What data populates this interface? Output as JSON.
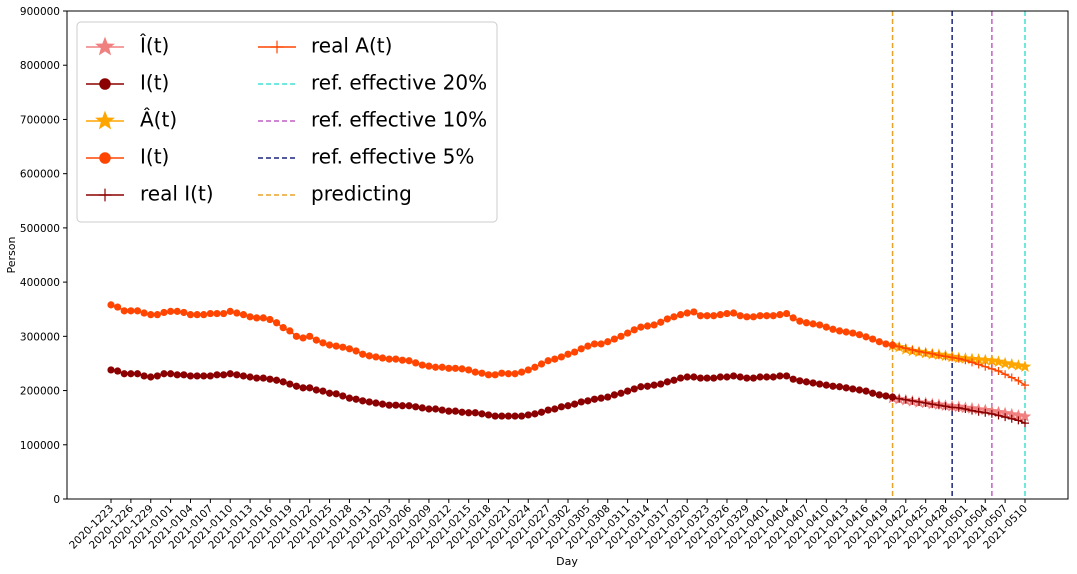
{
  "chart_data": {
    "type": "line",
    "x_label": "Day",
    "y_label": "Person",
    "ylim": [
      0,
      900000
    ],
    "yticks": [
      0,
      100000,
      200000,
      300000,
      400000,
      500000,
      600000,
      700000,
      800000,
      900000
    ],
    "categories": [
      "2020-1223",
      null,
      null,
      "2020-1226",
      null,
      null,
      "2020-1229",
      null,
      null,
      "2021-0101",
      null,
      null,
      "2021-0104",
      null,
      null,
      "2021-0107",
      null,
      null,
      "2021-0110",
      null,
      null,
      "2021-0113",
      null,
      null,
      "2021-0116",
      null,
      null,
      "2021-0119",
      null,
      null,
      "2021-0122",
      null,
      null,
      "2021-0125",
      null,
      null,
      "2021-0128",
      null,
      null,
      "2021-0131",
      null,
      null,
      "2021-0203",
      null,
      null,
      "2021-0206",
      null,
      null,
      "2021-0209",
      null,
      null,
      "2021-0212",
      null,
      null,
      "2021-0215",
      null,
      null,
      "2021-0218",
      null,
      null,
      "2021-0221",
      null,
      null,
      "2021-0224",
      null,
      null,
      "2021-0227",
      null,
      null,
      "2021-0302",
      null,
      null,
      "2021-0305",
      null,
      null,
      "2021-0308",
      null,
      null,
      "2021-0311",
      null,
      null,
      "2021-0314",
      null,
      null,
      "2021-0317",
      null,
      null,
      "2021-0320",
      null,
      null,
      "2021-0323",
      null,
      null,
      "2021-0326",
      null,
      null,
      "2021-0329",
      null,
      null,
      "2021-0401",
      null,
      null,
      "2021-0404",
      null,
      null,
      "2021-0407",
      null,
      null,
      "2021-0410",
      null,
      null,
      "2021-0413",
      null,
      null,
      "2021-0416",
      null,
      null,
      "2021-0419",
      null,
      null,
      "2021-0422",
      null,
      null,
      "2021-0425",
      null,
      null,
      "2021-0428",
      null,
      null,
      "2021-0501",
      null,
      null,
      "2021-0504",
      null,
      null,
      "2021-0507",
      null,
      null,
      "2021-0510"
    ],
    "series": [
      {
        "name": "Î(t)",
        "color": "#f08080",
        "marker": "star",
        "values": [
          null,
          null,
          null,
          null,
          null,
          null,
          null,
          null,
          null,
          null,
          null,
          null,
          null,
          null,
          null,
          null,
          null,
          null,
          null,
          null,
          null,
          null,
          null,
          null,
          null,
          null,
          null,
          null,
          null,
          null,
          null,
          null,
          null,
          null,
          null,
          null,
          null,
          null,
          null,
          null,
          null,
          null,
          null,
          null,
          null,
          null,
          null,
          null,
          null,
          null,
          null,
          null,
          null,
          null,
          null,
          null,
          null,
          null,
          null,
          null,
          null,
          null,
          null,
          null,
          null,
          null,
          null,
          null,
          null,
          null,
          null,
          null,
          null,
          null,
          null,
          null,
          null,
          null,
          null,
          null,
          null,
          null,
          null,
          null,
          null,
          null,
          null,
          null,
          null,
          null,
          null,
          null,
          null,
          null,
          null,
          null,
          null,
          null,
          null,
          null,
          null,
          null,
          null,
          null,
          null,
          null,
          null,
          null,
          null,
          null,
          null,
          null,
          null,
          null,
          null,
          null,
          null,
          null,
          186000,
          184000,
          182000,
          180000,
          178000,
          177000,
          175000,
          174000,
          172000,
          171000,
          170000,
          168000,
          167000,
          165000,
          164000,
          162000,
          160000,
          158000,
          156000,
          154000,
          152000
        ]
      },
      {
        "name": "I(t)",
        "color": "#8b0000",
        "marker": "circle",
        "values": [
          238000,
          236000,
          231000,
          231000,
          231000,
          227000,
          225000,
          227000,
          231000,
          231000,
          229000,
          229000,
          227000,
          227000,
          227000,
          227000,
          229000,
          229000,
          231000,
          229000,
          227000,
          225000,
          223000,
          223000,
          221000,
          219000,
          216000,
          212000,
          208000,
          205000,
          205000,
          201000,
          199000,
          195000,
          194000,
          190000,
          186000,
          184000,
          181000,
          179000,
          177000,
          175000,
          173000,
          173000,
          172000,
          172000,
          170000,
          168000,
          166000,
          166000,
          164000,
          162000,
          162000,
          160000,
          159000,
          159000,
          157000,
          155000,
          153000,
          153000,
          153000,
          153000,
          153000,
          155000,
          157000,
          160000,
          164000,
          166000,
          170000,
          172000,
          175000,
          179000,
          181000,
          184000,
          186000,
          188000,
          192000,
          195000,
          199000,
          203000,
          207000,
          208000,
          210000,
          212000,
          216000,
          219000,
          223000,
          225000,
          225000,
          223000,
          223000,
          223000,
          225000,
          225000,
          227000,
          225000,
          223000,
          223000,
          225000,
          225000,
          225000,
          227000,
          227000,
          221000,
          218000,
          216000,
          214000,
          212000,
          210000,
          208000,
          207000,
          205000,
          203000,
          201000,
          199000,
          195000,
          192000,
          190000,
          188000,
          null,
          null,
          null,
          null,
          null,
          null,
          null,
          null,
          null,
          null,
          null,
          null,
          null,
          null,
          null,
          null,
          null,
          null,
          null,
          null
        ]
      },
      {
        "name": "Â(t)",
        "color": "#ffa500",
        "marker": "star",
        "values": [
          null,
          null,
          null,
          null,
          null,
          null,
          null,
          null,
          null,
          null,
          null,
          null,
          null,
          null,
          null,
          null,
          null,
          null,
          null,
          null,
          null,
          null,
          null,
          null,
          null,
          null,
          null,
          null,
          null,
          null,
          null,
          null,
          null,
          null,
          null,
          null,
          null,
          null,
          null,
          null,
          null,
          null,
          null,
          null,
          null,
          null,
          null,
          null,
          null,
          null,
          null,
          null,
          null,
          null,
          null,
          null,
          null,
          null,
          null,
          null,
          null,
          null,
          null,
          null,
          null,
          null,
          null,
          null,
          null,
          null,
          null,
          null,
          null,
          null,
          null,
          null,
          null,
          null,
          null,
          null,
          null,
          null,
          null,
          null,
          null,
          null,
          null,
          null,
          null,
          null,
          null,
          null,
          null,
          null,
          null,
          null,
          null,
          null,
          null,
          null,
          null,
          null,
          null,
          null,
          null,
          null,
          null,
          null,
          null,
          null,
          null,
          null,
          null,
          null,
          null,
          null,
          null,
          null,
          283000,
          280000,
          276000,
          273000,
          271000,
          269000,
          267000,
          266000,
          264000,
          262000,
          260000,
          259000,
          258000,
          257000,
          256000,
          255000,
          253000,
          250000,
          248000,
          246000,
          244000
        ]
      },
      {
        "name": "I(t)",
        "color": "#ff4500",
        "marker": "circle",
        "values": [
          358000,
          354000,
          347000,
          347000,
          347000,
          343000,
          340000,
          340000,
          344000,
          346000,
          346000,
          344000,
          340000,
          340000,
          340000,
          342000,
          342000,
          342000,
          346000,
          343000,
          340000,
          336000,
          334000,
          334000,
          331000,
          325000,
          316000,
          310000,
          300000,
          297000,
          300000,
          293000,
          288000,
          284000,
          282000,
          280000,
          277000,
          273000,
          267000,
          264000,
          262000,
          260000,
          258000,
          258000,
          256000,
          255000,
          251000,
          247000,
          245000,
          243000,
          243000,
          241000,
          241000,
          240000,
          238000,
          234000,
          232000,
          229000,
          229000,
          232000,
          231000,
          231000,
          234000,
          238000,
          243000,
          249000,
          255000,
          258000,
          262000,
          267000,
          271000,
          277000,
          282000,
          286000,
          286000,
          290000,
          295000,
          300000,
          306000,
          312000,
          317000,
          319000,
          321000,
          326000,
          332000,
          336000,
          340000,
          343000,
          345000,
          338000,
          338000,
          338000,
          340000,
          342000,
          343000,
          338000,
          336000,
          336000,
          338000,
          338000,
          338000,
          340000,
          342000,
          334000,
          328000,
          325000,
          323000,
          321000,
          317000,
          313000,
          310000,
          308000,
          306000,
          303000,
          299000,
          295000,
          290000,
          286000,
          284000,
          null,
          null,
          null,
          null,
          null,
          null,
          null,
          null,
          null,
          null,
          null,
          null,
          null,
          null,
          null,
          null,
          null,
          null,
          null,
          null
        ]
      },
      {
        "name": "real I(t)",
        "color": "#8b0000",
        "marker": "plus",
        "values": [
          null,
          null,
          null,
          null,
          null,
          null,
          null,
          null,
          null,
          null,
          null,
          null,
          null,
          null,
          null,
          null,
          null,
          null,
          null,
          null,
          null,
          null,
          null,
          null,
          null,
          null,
          null,
          null,
          null,
          null,
          null,
          null,
          null,
          null,
          null,
          null,
          null,
          null,
          null,
          null,
          null,
          null,
          null,
          null,
          null,
          null,
          null,
          null,
          null,
          null,
          null,
          null,
          null,
          null,
          null,
          null,
          null,
          null,
          null,
          null,
          null,
          null,
          null,
          null,
          null,
          null,
          null,
          null,
          null,
          null,
          null,
          null,
          null,
          null,
          null,
          null,
          null,
          null,
          null,
          null,
          null,
          null,
          null,
          null,
          null,
          null,
          null,
          null,
          null,
          null,
          null,
          null,
          null,
          null,
          null,
          null,
          null,
          null,
          null,
          null,
          null,
          null,
          null,
          null,
          null,
          null,
          null,
          null,
          null,
          null,
          null,
          null,
          null,
          null,
          null,
          null,
          null,
          null,
          187000,
          185000,
          183000,
          181000,
          179000,
          177000,
          175000,
          173000,
          171000,
          169000,
          168000,
          166000,
          163000,
          161000,
          159000,
          157000,
          154000,
          151000,
          148000,
          145000,
          140000
        ]
      },
      {
        "name": "real A(t)",
        "color": "#ff4500",
        "marker": "plus",
        "values": [
          null,
          null,
          null,
          null,
          null,
          null,
          null,
          null,
          null,
          null,
          null,
          null,
          null,
          null,
          null,
          null,
          null,
          null,
          null,
          null,
          null,
          null,
          null,
          null,
          null,
          null,
          null,
          null,
          null,
          null,
          null,
          null,
          null,
          null,
          null,
          null,
          null,
          null,
          null,
          null,
          null,
          null,
          null,
          null,
          null,
          null,
          null,
          null,
          null,
          null,
          null,
          null,
          null,
          null,
          null,
          null,
          null,
          null,
          null,
          null,
          null,
          null,
          null,
          null,
          null,
          null,
          null,
          null,
          null,
          null,
          null,
          null,
          null,
          null,
          null,
          null,
          null,
          null,
          null,
          null,
          null,
          null,
          null,
          null,
          null,
          null,
          null,
          null,
          null,
          null,
          null,
          null,
          null,
          null,
          null,
          null,
          null,
          null,
          null,
          null,
          null,
          null,
          null,
          null,
          null,
          null,
          null,
          null,
          null,
          null,
          null,
          null,
          null,
          null,
          null,
          null,
          null,
          null,
          284000,
          281000,
          278000,
          275000,
          272000,
          270000,
          268000,
          265000,
          263000,
          261000,
          259000,
          256000,
          252000,
          248000,
          244000,
          240000,
          236000,
          230000,
          224000,
          218000,
          210000
        ]
      }
    ],
    "vlines": [
      {
        "name": "ref. effective 20%",
        "color": "#40e0d0",
        "x_index": 138
      },
      {
        "name": "ref. effective 10%",
        "color": "#c25fc6",
        "x_index": 133
      },
      {
        "name": "ref. effective 5%",
        "color": "#1a237e",
        "x_index": 127
      },
      {
        "name": "predicting",
        "color": "#e8a22a",
        "x_index": 118
      }
    ]
  }
}
